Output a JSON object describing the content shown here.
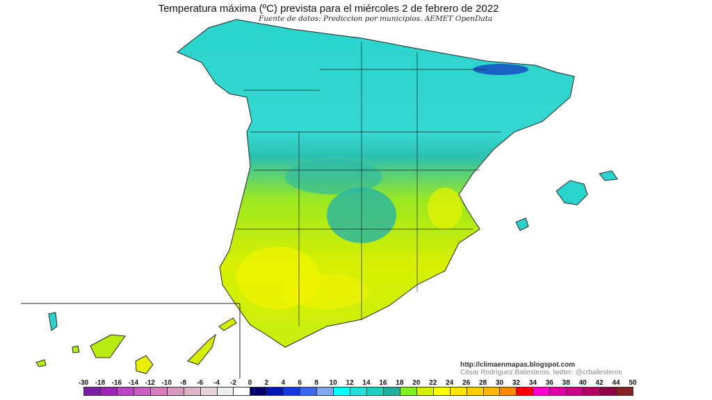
{
  "title": "Temperatura máxima (ºC) prevista para el miércoles 2 de febrero de 2022",
  "subtitle": "Fuente de datos: Prediccion por municipios. AEMET OpenData",
  "credits": {
    "url": "http://climaenmapas.blogspot.com",
    "author": "César Rodríguez Ballesteros, twitter: @crballesteros"
  },
  "legend": {
    "labels": [
      "-30",
      "-18",
      "-16",
      "-14",
      "-12",
      "-10",
      "-8",
      "-6",
      "-4",
      "-2",
      "0",
      "2",
      "4",
      "6",
      "8",
      "10",
      "12",
      "14",
      "16",
      "18",
      "20",
      "22",
      "24",
      "26",
      "28",
      "30",
      "32",
      "34",
      "36",
      "38",
      "40",
      "42",
      "44",
      "50"
    ],
    "colors": [
      "#7a1ea6",
      "#a024b8",
      "#c040c8",
      "#cc5cc4",
      "#d47cbc",
      "#d898c0",
      "#dcb4c8",
      "#e8d4dc",
      "#eeeeee",
      "#ffffff",
      "#000070",
      "#0018b0",
      "#1438e0",
      "#3a68f0",
      "#80a8f0",
      "#00ffff",
      "#20e0d8",
      "#1ccfc0",
      "#20b0a0",
      "#80f020",
      "#d4f000",
      "#ffff00",
      "#ffe400",
      "#ffcc00",
      "#ffb400",
      "#ff8800",
      "#ff0000",
      "#ff00d0",
      "#e000a8",
      "#cc0088",
      "#b00064",
      "#900044",
      "#882020"
    ]
  },
  "map": {
    "region": "España",
    "colors": {
      "north": "#2ad4cc",
      "central": "#26b8a8",
      "south": "#b8ec10",
      "hot": "#f4f400",
      "cold": "#1030c0"
    }
  }
}
